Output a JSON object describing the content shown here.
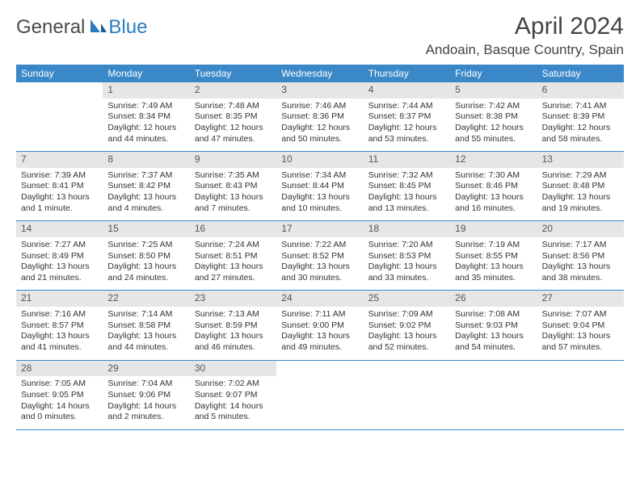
{
  "logo": {
    "part1": "General",
    "part2": "Blue"
  },
  "title": "April 2024",
  "location": "Andoain, Basque Country, Spain",
  "colors": {
    "header_bg": "#3b88c8",
    "header_fg": "#ffffff",
    "daynum_bg": "#e6e6e6",
    "border": "#3b88c8",
    "logo_gray": "#4a4a4a",
    "logo_blue": "#2b7bbf"
  },
  "day_names": [
    "Sunday",
    "Monday",
    "Tuesday",
    "Wednesday",
    "Thursday",
    "Friday",
    "Saturday"
  ],
  "layout": {
    "first_day_offset": 1,
    "days_in_month": 30
  },
  "days": {
    "1": {
      "sunrise": "7:49 AM",
      "sunset": "8:34 PM",
      "daylight": "12 hours and 44 minutes."
    },
    "2": {
      "sunrise": "7:48 AM",
      "sunset": "8:35 PM",
      "daylight": "12 hours and 47 minutes."
    },
    "3": {
      "sunrise": "7:46 AM",
      "sunset": "8:36 PM",
      "daylight": "12 hours and 50 minutes."
    },
    "4": {
      "sunrise": "7:44 AM",
      "sunset": "8:37 PM",
      "daylight": "12 hours and 53 minutes."
    },
    "5": {
      "sunrise": "7:42 AM",
      "sunset": "8:38 PM",
      "daylight": "12 hours and 55 minutes."
    },
    "6": {
      "sunrise": "7:41 AM",
      "sunset": "8:39 PM",
      "daylight": "12 hours and 58 minutes."
    },
    "7": {
      "sunrise": "7:39 AM",
      "sunset": "8:41 PM",
      "daylight": "13 hours and 1 minute."
    },
    "8": {
      "sunrise": "7:37 AM",
      "sunset": "8:42 PM",
      "daylight": "13 hours and 4 minutes."
    },
    "9": {
      "sunrise": "7:35 AM",
      "sunset": "8:43 PM",
      "daylight": "13 hours and 7 minutes."
    },
    "10": {
      "sunrise": "7:34 AM",
      "sunset": "8:44 PM",
      "daylight": "13 hours and 10 minutes."
    },
    "11": {
      "sunrise": "7:32 AM",
      "sunset": "8:45 PM",
      "daylight": "13 hours and 13 minutes."
    },
    "12": {
      "sunrise": "7:30 AM",
      "sunset": "8:46 PM",
      "daylight": "13 hours and 16 minutes."
    },
    "13": {
      "sunrise": "7:29 AM",
      "sunset": "8:48 PM",
      "daylight": "13 hours and 19 minutes."
    },
    "14": {
      "sunrise": "7:27 AM",
      "sunset": "8:49 PM",
      "daylight": "13 hours and 21 minutes."
    },
    "15": {
      "sunrise": "7:25 AM",
      "sunset": "8:50 PM",
      "daylight": "13 hours and 24 minutes."
    },
    "16": {
      "sunrise": "7:24 AM",
      "sunset": "8:51 PM",
      "daylight": "13 hours and 27 minutes."
    },
    "17": {
      "sunrise": "7:22 AM",
      "sunset": "8:52 PM",
      "daylight": "13 hours and 30 minutes."
    },
    "18": {
      "sunrise": "7:20 AM",
      "sunset": "8:53 PM",
      "daylight": "13 hours and 33 minutes."
    },
    "19": {
      "sunrise": "7:19 AM",
      "sunset": "8:55 PM",
      "daylight": "13 hours and 35 minutes."
    },
    "20": {
      "sunrise": "7:17 AM",
      "sunset": "8:56 PM",
      "daylight": "13 hours and 38 minutes."
    },
    "21": {
      "sunrise": "7:16 AM",
      "sunset": "8:57 PM",
      "daylight": "13 hours and 41 minutes."
    },
    "22": {
      "sunrise": "7:14 AM",
      "sunset": "8:58 PM",
      "daylight": "13 hours and 44 minutes."
    },
    "23": {
      "sunrise": "7:13 AM",
      "sunset": "8:59 PM",
      "daylight": "13 hours and 46 minutes."
    },
    "24": {
      "sunrise": "7:11 AM",
      "sunset": "9:00 PM",
      "daylight": "13 hours and 49 minutes."
    },
    "25": {
      "sunrise": "7:09 AM",
      "sunset": "9:02 PM",
      "daylight": "13 hours and 52 minutes."
    },
    "26": {
      "sunrise": "7:08 AM",
      "sunset": "9:03 PM",
      "daylight": "13 hours and 54 minutes."
    },
    "27": {
      "sunrise": "7:07 AM",
      "sunset": "9:04 PM",
      "daylight": "13 hours and 57 minutes."
    },
    "28": {
      "sunrise": "7:05 AM",
      "sunset": "9:05 PM",
      "daylight": "14 hours and 0 minutes."
    },
    "29": {
      "sunrise": "7:04 AM",
      "sunset": "9:06 PM",
      "daylight": "14 hours and 2 minutes."
    },
    "30": {
      "sunrise": "7:02 AM",
      "sunset": "9:07 PM",
      "daylight": "14 hours and 5 minutes."
    }
  },
  "labels": {
    "sunrise": "Sunrise: ",
    "sunset": "Sunset: ",
    "daylight": "Daylight: "
  }
}
